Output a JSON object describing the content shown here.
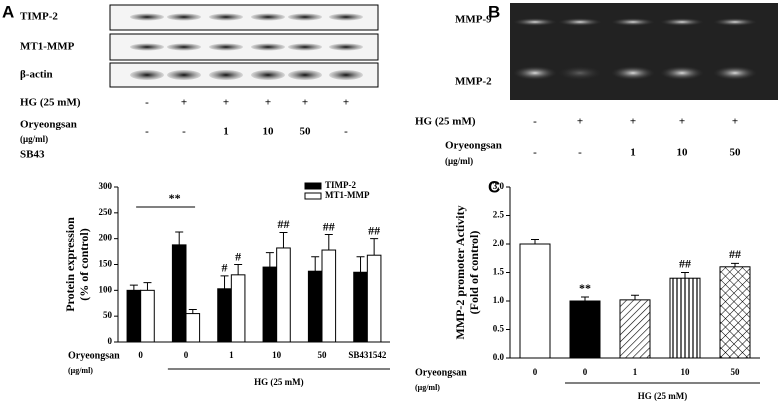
{
  "panels": {
    "a": {
      "letter": "A",
      "bands": [
        "TIMP-2",
        "MT1-MMP",
        "β-actin"
      ],
      "rows": [
        {
          "label": [
            "HG (25 mM)"
          ],
          "cells": [
            "-",
            "+",
            "+",
            "+",
            "+",
            "+"
          ]
        },
        {
          "label": [
            "Oryeongsan",
            "(μg/ml)"
          ],
          "cells": [
            "-",
            "-",
            "1",
            "10",
            "50",
            "-"
          ]
        },
        {
          "label": [
            "SB43"
          ],
          "cells": []
        }
      ]
    },
    "b": {
      "letter": "B",
      "bands": [
        "MMP-9",
        "MMP-2"
      ],
      "rows": [
        {
          "label": [
            "HG (25 mM)"
          ],
          "cells": [
            "-",
            "+",
            "+",
            "+",
            "+"
          ]
        },
        {
          "label": [
            "Oryeongsan",
            "(μg/ml)"
          ],
          "cells": [
            "-",
            "-",
            "1",
            "10",
            "50"
          ]
        }
      ]
    },
    "c": {
      "letter": "C"
    }
  },
  "chart_data": [
    {
      "type": "bar",
      "ylabel": [
        "Protein expression",
        "(% of control)"
      ],
      "categories": [
        "0",
        "0",
        "1",
        "10",
        "50",
        "SB431542"
      ],
      "x_row_label": [
        "Oryeongsan",
        "(μg/ml)"
      ],
      "group_label": "HG (25 mM)",
      "series": [
        {
          "name": "TIMP-2",
          "color": "#000000",
          "values": [
            100,
            188,
            103,
            145,
            137,
            135
          ],
          "errors": [
            10,
            25,
            25,
            28,
            28,
            30
          ]
        },
        {
          "name": "MT1-MMP",
          "color": "#ffffff",
          "values": [
            100,
            55,
            130,
            182,
            178,
            168
          ],
          "errors": [
            15,
            8,
            20,
            30,
            30,
            32
          ]
        }
      ],
      "annotations": [
        {
          "text": "**",
          "index": 1
        },
        {
          "text": "#",
          "series": 0,
          "index": 2
        },
        {
          "text": "#",
          "series": 1,
          "index": 2
        },
        {
          "text": "##",
          "series": 1,
          "index": 3
        },
        {
          "text": "##",
          "series": 1,
          "index": 4
        },
        {
          "text": "##",
          "series": 1,
          "index": 5
        }
      ],
      "ylim": [
        0,
        300
      ],
      "yticks": [
        0,
        50,
        100,
        150,
        200,
        250,
        300
      ]
    },
    {
      "type": "bar",
      "ylabel": [
        "MMP-2 promoter Activity",
        "(Fold of control)"
      ],
      "categories": [
        "0",
        "0",
        "1",
        "10",
        "50"
      ],
      "x_row_label": [
        "Oryeongsan",
        "(μg/ml)"
      ],
      "group_label": "HG (25 mM)",
      "values": [
        2.0,
        1.0,
        1.02,
        1.4,
        1.6
      ],
      "errors": [
        0.08,
        0.07,
        0.08,
        0.1,
        0.06
      ],
      "patterns": [
        "white",
        "black",
        "diagonal",
        "vertical",
        "crosshatch"
      ],
      "annotations": [
        {
          "text": "**",
          "index": 1
        },
        {
          "text": "##",
          "index": 3
        },
        {
          "text": "##",
          "index": 4
        }
      ],
      "ylim": [
        0,
        3
      ],
      "yticks": [
        {
          "value": 0,
          "label": "0.0"
        },
        0.5,
        {
          "value": 1,
          "label": "1.0"
        },
        1.5,
        {
          "value": 2,
          "label": "2.0"
        },
        2.5,
        {
          "value": 3,
          "label": "3.0"
        }
      ]
    }
  ]
}
